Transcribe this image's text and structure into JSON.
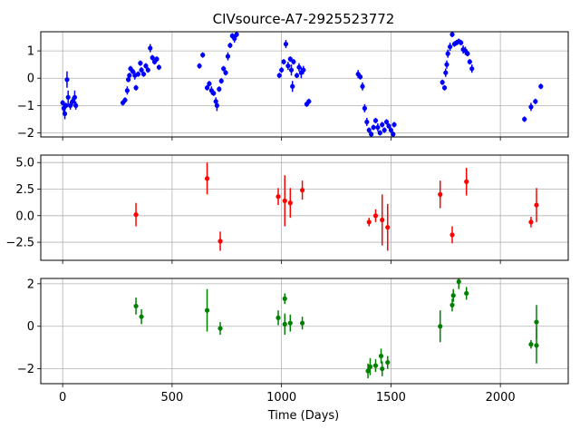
{
  "chart_data": {
    "type": "scatter",
    "title": "CIVsource-A7-2925523772",
    "xlabel": "Time (Days)",
    "xlim": [
      -100,
      2310
    ],
    "x_ticks": [
      0,
      500,
      1000,
      1500,
      2000
    ],
    "x_tick_labels": [
      "0",
      "500",
      "1000",
      "1500",
      "2000"
    ],
    "grid": true,
    "panels": [
      {
        "name": "panel-top",
        "color": "#0000ff",
        "ylim": [
          -2.15,
          1.7
        ],
        "y_ticks": [
          -2,
          -1,
          0,
          1
        ],
        "y_tick_labels": [
          "−2",
          "−1",
          "0",
          "1"
        ],
        "points": [
          [
            0,
            -0.9,
            0.1
          ],
          [
            5,
            -1.1,
            0.15
          ],
          [
            10,
            -1.3,
            0.2
          ],
          [
            15,
            -1.0,
            0.1
          ],
          [
            20,
            -0.05,
            0.3
          ],
          [
            25,
            -0.7,
            0.25
          ],
          [
            35,
            -1.0,
            0.15
          ],
          [
            45,
            -0.85,
            0.15
          ],
          [
            55,
            -0.7,
            0.25
          ],
          [
            60,
            -1.0,
            0.15
          ],
          [
            275,
            -0.9,
            0.1
          ],
          [
            285,
            -0.8,
            0.1
          ],
          [
            295,
            -0.45,
            0.15
          ],
          [
            300,
            -0.05,
            0.1
          ],
          [
            305,
            0.1,
            0.1
          ],
          [
            310,
            0.35,
            0.1
          ],
          [
            320,
            0.25,
            0.1
          ],
          [
            330,
            0.1,
            0.15
          ],
          [
            335,
            -0.35,
            0.1
          ],
          [
            345,
            0.15,
            0.1
          ],
          [
            355,
            0.55,
            0.1
          ],
          [
            360,
            0.3,
            0.1
          ],
          [
            370,
            0.15,
            0.1
          ],
          [
            380,
            0.45,
            0.1
          ],
          [
            390,
            0.3,
            0.1
          ],
          [
            400,
            1.1,
            0.15
          ],
          [
            410,
            0.75,
            0.1
          ],
          [
            420,
            0.6,
            0.1
          ],
          [
            430,
            0.7,
            0.1
          ],
          [
            440,
            0.4,
            0.1
          ],
          [
            625,
            0.45,
            0.1
          ],
          [
            640,
            0.85,
            0.1
          ],
          [
            660,
            -0.35,
            0.1
          ],
          [
            670,
            -0.2,
            0.1
          ],
          [
            680,
            -0.45,
            0.15
          ],
          [
            690,
            -0.55,
            0.1
          ],
          [
            700,
            -0.85,
            0.15
          ],
          [
            705,
            -1.0,
            0.2
          ],
          [
            715,
            -0.4,
            0.1
          ],
          [
            725,
            -0.1,
            0.1
          ],
          [
            735,
            0.35,
            0.1
          ],
          [
            745,
            0.2,
            0.1
          ],
          [
            755,
            0.8,
            0.15
          ],
          [
            765,
            1.2,
            0.1
          ],
          [
            775,
            1.55,
            0.1
          ],
          [
            785,
            1.45,
            0.15
          ],
          [
            795,
            1.6,
            0.1
          ],
          [
            990,
            0.1,
            0.1
          ],
          [
            1000,
            0.3,
            0.1
          ],
          [
            1010,
            0.6,
            0.1
          ],
          [
            1020,
            1.25,
            0.15
          ],
          [
            1030,
            0.45,
            0.15
          ],
          [
            1040,
            0.7,
            0.1
          ],
          [
            1045,
            0.3,
            0.2
          ],
          [
            1050,
            -0.3,
            0.2
          ],
          [
            1055,
            0.6,
            0.1
          ],
          [
            1070,
            0.1,
            0.1
          ],
          [
            1080,
            0.4,
            0.15
          ],
          [
            1090,
            0.2,
            0.2
          ],
          [
            1100,
            0.3,
            0.15
          ],
          [
            1115,
            -0.95,
            0.1
          ],
          [
            1125,
            -0.85,
            0.1
          ],
          [
            1350,
            0.15,
            0.15
          ],
          [
            1360,
            0.05,
            0.1
          ],
          [
            1370,
            -0.3,
            0.15
          ],
          [
            1380,
            -1.1,
            0.15
          ],
          [
            1390,
            -1.6,
            0.15
          ],
          [
            1400,
            -1.9,
            0.1
          ],
          [
            1410,
            -2.05,
            0.1
          ],
          [
            1420,
            -1.8,
            0.1
          ],
          [
            1430,
            -1.55,
            0.1
          ],
          [
            1440,
            -1.8,
            0.15
          ],
          [
            1450,
            -2.0,
            0.1
          ],
          [
            1460,
            -1.7,
            0.1
          ],
          [
            1470,
            -1.9,
            0.1
          ],
          [
            1480,
            -1.6,
            0.1
          ],
          [
            1490,
            -1.75,
            0.1
          ],
          [
            1500,
            -1.9,
            0.1
          ],
          [
            1510,
            -2.05,
            0.1
          ],
          [
            1515,
            -1.7,
            0.1
          ],
          [
            1735,
            -0.15,
            0.1
          ],
          [
            1745,
            -0.35,
            0.1
          ],
          [
            1750,
            0.2,
            0.15
          ],
          [
            1755,
            0.5,
            0.15
          ],
          [
            1760,
            0.9,
            0.15
          ],
          [
            1770,
            1.15,
            0.15
          ],
          [
            1780,
            1.6,
            0.1
          ],
          [
            1790,
            1.25,
            0.1
          ],
          [
            1800,
            1.3,
            0.1
          ],
          [
            1810,
            1.35,
            0.1
          ],
          [
            1820,
            1.3,
            0.1
          ],
          [
            1830,
            1.05,
            0.15
          ],
          [
            1840,
            1.0,
            0.15
          ],
          [
            1850,
            0.9,
            0.1
          ],
          [
            1860,
            0.6,
            0.1
          ],
          [
            1870,
            0.35,
            0.15
          ],
          [
            2110,
            -1.5,
            0.1
          ],
          [
            2140,
            -1.05,
            0.15
          ],
          [
            2160,
            -0.85,
            0.1
          ],
          [
            2185,
            -0.3,
            0.1
          ]
        ]
      },
      {
        "name": "panel-middle",
        "color": "#ff0000",
        "ylim": [
          -4.2,
          5.7
        ],
        "y_ticks": [
          -2.5,
          0.0,
          2.5,
          5.0
        ],
        "y_tick_labels": [
          "−2.5",
          "0.0",
          "2.5",
          "5.0"
        ],
        "points": [
          [
            335,
            0.1,
            1.1
          ],
          [
            660,
            3.5,
            1.5
          ],
          [
            720,
            -2.4,
            0.9
          ],
          [
            985,
            1.8,
            0.8
          ],
          [
            1015,
            1.4,
            2.4
          ],
          [
            1040,
            1.2,
            1.4
          ],
          [
            1095,
            2.4,
            0.9
          ],
          [
            1400,
            -0.6,
            0.4
          ],
          [
            1430,
            0.0,
            0.6
          ],
          [
            1460,
            -0.4,
            2.4
          ],
          [
            1485,
            -1.1,
            2.2
          ],
          [
            1725,
            2.0,
            1.3
          ],
          [
            1780,
            -1.8,
            0.8
          ],
          [
            1845,
            3.2,
            1.3
          ],
          [
            2140,
            -0.6,
            0.5
          ],
          [
            2165,
            1.0,
            1.6
          ]
        ]
      },
      {
        "name": "panel-bottom",
        "color": "#008000",
        "ylim": [
          -2.7,
          2.25
        ],
        "y_ticks": [
          -2,
          0,
          2
        ],
        "y_tick_labels": [
          "−2",
          "0",
          "2"
        ],
        "points": [
          [
            335,
            0.95,
            0.4
          ],
          [
            360,
            0.45,
            0.35
          ],
          [
            660,
            0.75,
            1.0
          ],
          [
            720,
            -0.1,
            0.3
          ],
          [
            985,
            0.4,
            0.35
          ],
          [
            1015,
            1.3,
            0.25
          ],
          [
            1015,
            0.1,
            0.5
          ],
          [
            1040,
            0.15,
            0.4
          ],
          [
            1095,
            0.15,
            0.3
          ],
          [
            1395,
            -2.1,
            0.35
          ],
          [
            1405,
            -1.9,
            0.4
          ],
          [
            1430,
            -1.85,
            0.3
          ],
          [
            1455,
            -1.4,
            0.35
          ],
          [
            1460,
            -2.0,
            0.35
          ],
          [
            1485,
            -1.7,
            0.3
          ],
          [
            1725,
            0.0,
            0.75
          ],
          [
            1780,
            1.0,
            0.3
          ],
          [
            1785,
            1.45,
            0.3
          ],
          [
            1810,
            2.1,
            0.35
          ],
          [
            1845,
            1.55,
            0.3
          ],
          [
            2140,
            -0.85,
            0.2
          ],
          [
            2165,
            -0.9,
            0.85
          ],
          [
            2165,
            0.2,
            0.8
          ]
        ]
      }
    ]
  }
}
